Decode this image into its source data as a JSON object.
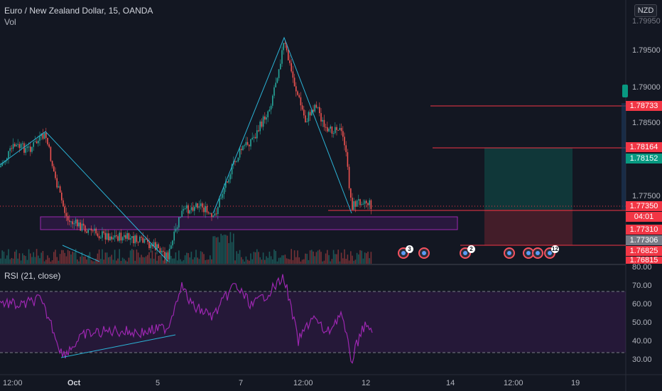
{
  "header": {
    "title": "Euro / New Zealand Dollar, 15, OANDA",
    "volume_label": "Vol",
    "currency": "NZD"
  },
  "price_axis": {
    "ticks": [
      "1.79500",
      "1.79000",
      "1.78500",
      "1.77500"
    ],
    "top_tick_partial": "1.79950"
  },
  "price_tags": {
    "stop_level": "1.78733",
    "take_level": "1.78164",
    "target_price": "1.78152",
    "last_price": "1.77350",
    "countdown": "04:01",
    "entry_level": "1.77310",
    "stop_entry": "1.77306",
    "lower_level": "1.76825",
    "bottom_partial": "1.76815"
  },
  "rsi": {
    "label": "RSI (21, close)",
    "ticks": [
      "80.00",
      "70.00",
      "60.00",
      "50.00",
      "40.00",
      "30.00"
    ],
    "upper_band": 70,
    "lower_band": 30
  },
  "time_axis": {
    "labels": [
      "12:00",
      "Oct",
      "5",
      "7",
      "12:00",
      "12",
      "14",
      "12:00",
      "19"
    ]
  },
  "events": {
    "counts": [
      "3",
      "2",
      "12"
    ]
  },
  "colors": {
    "background": "#131722",
    "up": "#26a69a",
    "down": "#ef5350",
    "rsi_line": "#9c27b0",
    "trend_line": "#2bb3d6",
    "zone": "#7b1fa2",
    "red_line": "#f23645",
    "tag_red": "#f23645",
    "tag_green": "#089981"
  }
}
